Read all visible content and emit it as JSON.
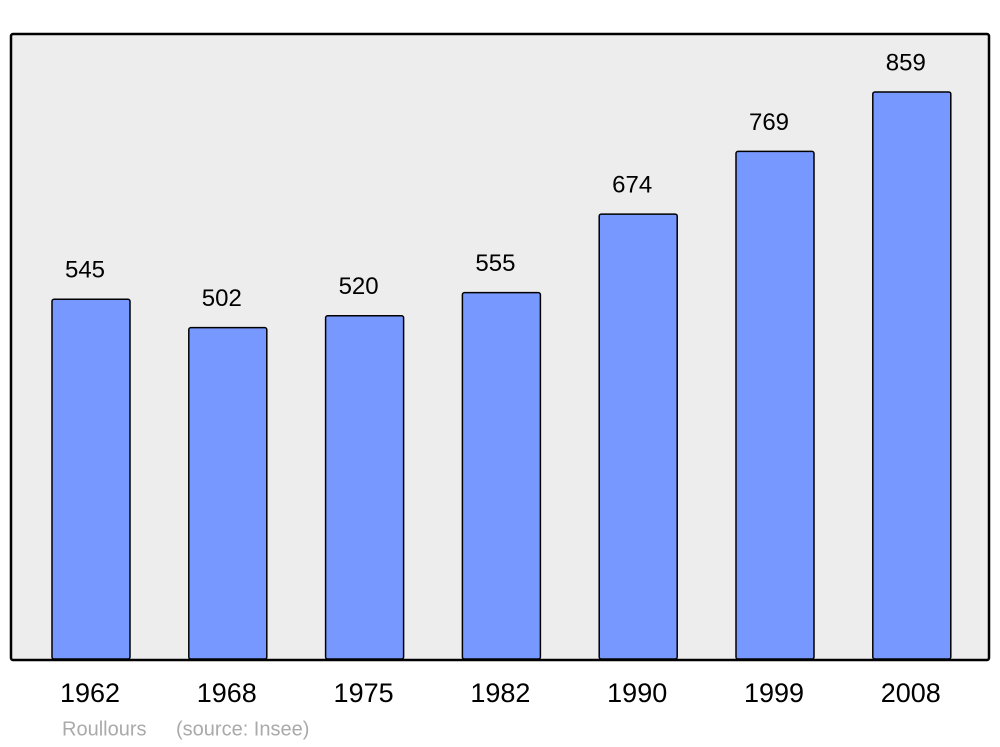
{
  "chart_data": {
    "type": "bar",
    "categories": [
      "1962",
      "1968",
      "1975",
      "1982",
      "1990",
      "1999",
      "2008"
    ],
    "values": [
      545,
      502,
      520,
      555,
      674,
      769,
      859
    ],
    "color": "#7799ff",
    "caption": "Roullours",
    "source": "(source: Insee)"
  }
}
